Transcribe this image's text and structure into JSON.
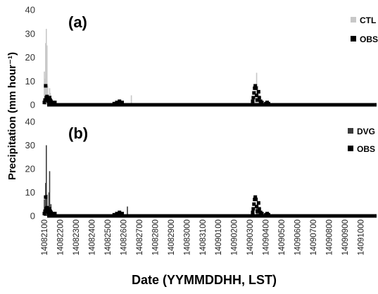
{
  "chart_data": [
    {
      "panel": "(a)",
      "type": "bar",
      "ylim": [
        0,
        40
      ],
      "yticks": [
        "0",
        "10",
        "20",
        "30",
        "40"
      ],
      "series": [
        {
          "name": "CTL",
          "color": "#c8c8c8",
          "style": "bar",
          "points": [
            {
              "x": "14082100",
              "y": 14
            },
            {
              "x": "14082101",
              "y": 11
            },
            {
              "x": "14082102",
              "y": 26
            },
            {
              "x": "14082103",
              "y": 32
            },
            {
              "x": "14082104",
              "y": 25
            },
            {
              "x": "14082105",
              "y": 8
            },
            {
              "x": "14082106",
              "y": 4
            },
            {
              "x": "14082107",
              "y": 3
            },
            {
              "x": "14082108",
              "y": 7
            },
            {
              "x": "14082109",
              "y": 5
            },
            {
              "x": "14082110",
              "y": 4
            },
            {
              "x": "14082111",
              "y": 2
            },
            {
              "x": "14082112",
              "y": 1.5
            },
            {
              "x": "14082114",
              "y": 1
            },
            {
              "x": "14082117",
              "y": 1
            },
            {
              "x": "14082510",
              "y": 1
            },
            {
              "x": "14082512",
              "y": 1.5
            },
            {
              "x": "14082514",
              "y": 1
            },
            {
              "x": "14082518",
              "y": 1
            },
            {
              "x": "14082612",
              "y": 4
            },
            {
              "x": "14090304",
              "y": 2
            },
            {
              "x": "14090306",
              "y": 3
            },
            {
              "x": "14090308",
              "y": 6
            },
            {
              "x": "14090310",
              "y": 13.5
            },
            {
              "x": "14090312",
              "y": 8
            },
            {
              "x": "14090314",
              "y": 5
            },
            {
              "x": "14090316",
              "y": 2
            },
            {
              "x": "14090400",
              "y": 1
            },
            {
              "x": "14090402",
              "y": 1.5
            }
          ]
        },
        {
          "name": "OBS",
          "color": "#000000",
          "style": "marker",
          "points": [
            {
              "x": "14082100",
              "y": 1
            },
            {
              "x": "14082101",
              "y": 2
            },
            {
              "x": "14082102",
              "y": 8
            },
            {
              "x": "14082103",
              "y": 3
            },
            {
              "x": "14082104",
              "y": 3.5
            },
            {
              "x": "14082105",
              "y": 2
            },
            {
              "x": "14082106",
              "y": 1.5
            },
            {
              "x": "14082108",
              "y": 3
            },
            {
              "x": "14082109",
              "y": 2
            },
            {
              "x": "14082110",
              "y": 1.5
            },
            {
              "x": "14082112",
              "y": 1
            },
            {
              "x": "14082116",
              "y": 1
            },
            {
              "x": "14082510",
              "y": 0.5
            },
            {
              "x": "14082514",
              "y": 1
            },
            {
              "x": "14082518",
              "y": 1.5
            },
            {
              "x": "14082522",
              "y": 1
            },
            {
              "x": "14090304",
              "y": 1.5
            },
            {
              "x": "14090305",
              "y": 3
            },
            {
              "x": "14090306",
              "y": 5
            },
            {
              "x": "14090307",
              "y": 7
            },
            {
              "x": "14090308",
              "y": 8
            },
            {
              "x": "14090309",
              "y": 7
            },
            {
              "x": "14090310",
              "y": 4
            },
            {
              "x": "14090311",
              "y": 2
            },
            {
              "x": "14090313",
              "y": 5.5
            },
            {
              "x": "14090314",
              "y": 3
            },
            {
              "x": "14090316",
              "y": 1.5
            },
            {
              "x": "14090318",
              "y": 1
            },
            {
              "x": "14090400",
              "y": 0.5
            },
            {
              "x": "14090402",
              "y": 1
            },
            {
              "x": "14090404",
              "y": 0.5
            }
          ]
        }
      ]
    },
    {
      "panel": "(b)",
      "type": "bar",
      "ylim": [
        0,
        40
      ],
      "yticks": [
        "0",
        "10",
        "20",
        "30",
        "40"
      ],
      "series": [
        {
          "name": "DVG",
          "color": "#3c3c3c",
          "style": "bar",
          "points": [
            {
              "x": "14082100",
              "y": 7
            },
            {
              "x": "14082101",
              "y": 4
            },
            {
              "x": "14082102",
              "y": 14
            },
            {
              "x": "14082103",
              "y": 30
            },
            {
              "x": "14082104",
              "y": 9
            },
            {
              "x": "14082106",
              "y": 4
            },
            {
              "x": "14082107",
              "y": 10
            },
            {
              "x": "14082108",
              "y": 19
            },
            {
              "x": "14082109",
              "y": 3
            },
            {
              "x": "14082110",
              "y": 5
            },
            {
              "x": "14082112",
              "y": 2
            },
            {
              "x": "14082116",
              "y": 1
            },
            {
              "x": "14082514",
              "y": 1
            },
            {
              "x": "14082518",
              "y": 1.5
            },
            {
              "x": "14082522",
              "y": 1
            },
            {
              "x": "14082606",
              "y": 4
            },
            {
              "x": "14090306",
              "y": 2
            },
            {
              "x": "14090310",
              "y": 4
            },
            {
              "x": "14090312",
              "y": 6
            },
            {
              "x": "14090314",
              "y": 2
            },
            {
              "x": "14090318",
              "y": 1
            },
            {
              "x": "14090400",
              "y": 1
            },
            {
              "x": "14090404",
              "y": 1.5
            }
          ]
        },
        {
          "name": "OBS",
          "color": "#000000",
          "style": "marker",
          "points": [
            {
              "x": "14082100",
              "y": 1
            },
            {
              "x": "14082101",
              "y": 2
            },
            {
              "x": "14082102",
              "y": 8
            },
            {
              "x": "14082103",
              "y": 3
            },
            {
              "x": "14082104",
              "y": 3.5
            },
            {
              "x": "14082105",
              "y": 2
            },
            {
              "x": "14082106",
              "y": 1.5
            },
            {
              "x": "14082108",
              "y": 3
            },
            {
              "x": "14082109",
              "y": 2
            },
            {
              "x": "14082110",
              "y": 1.5
            },
            {
              "x": "14082112",
              "y": 1
            },
            {
              "x": "14082116",
              "y": 1
            },
            {
              "x": "14082510",
              "y": 0.5
            },
            {
              "x": "14082514",
              "y": 1
            },
            {
              "x": "14082518",
              "y": 1.5
            },
            {
              "x": "14082522",
              "y": 1
            },
            {
              "x": "14090304",
              "y": 1.5
            },
            {
              "x": "14090305",
              "y": 3
            },
            {
              "x": "14090306",
              "y": 5
            },
            {
              "x": "14090307",
              "y": 7
            },
            {
              "x": "14090308",
              "y": 8
            },
            {
              "x": "14090309",
              "y": 7
            },
            {
              "x": "14090310",
              "y": 4
            },
            {
              "x": "14090311",
              "y": 2
            },
            {
              "x": "14090313",
              "y": 5.5
            },
            {
              "x": "14090314",
              "y": 3
            },
            {
              "x": "14090316",
              "y": 1.5
            },
            {
              "x": "14090318",
              "y": 1
            },
            {
              "x": "14090400",
              "y": 0.5
            },
            {
              "x": "14090402",
              "y": 1
            },
            {
              "x": "14090404",
              "y": 0.5
            }
          ]
        }
      ]
    }
  ],
  "x_axis": {
    "start": "14082100",
    "end": "14091023",
    "tick_labels": [
      "14082100",
      "14082200",
      "14082300",
      "14082400",
      "14082500",
      "14082600",
      "14082700",
      "14082800",
      "14082900",
      "14083000",
      "14083100",
      "14090100",
      "14090200",
      "14090300",
      "14090400",
      "14090500",
      "14090600",
      "14090700",
      "14090800",
      "14090900",
      "14091000"
    ]
  },
  "ylabel": "Precipitation (mm hour⁻¹)",
  "xlabel": "Date (YYMMDDHH, LST)",
  "grid": false,
  "legend_position": "right"
}
